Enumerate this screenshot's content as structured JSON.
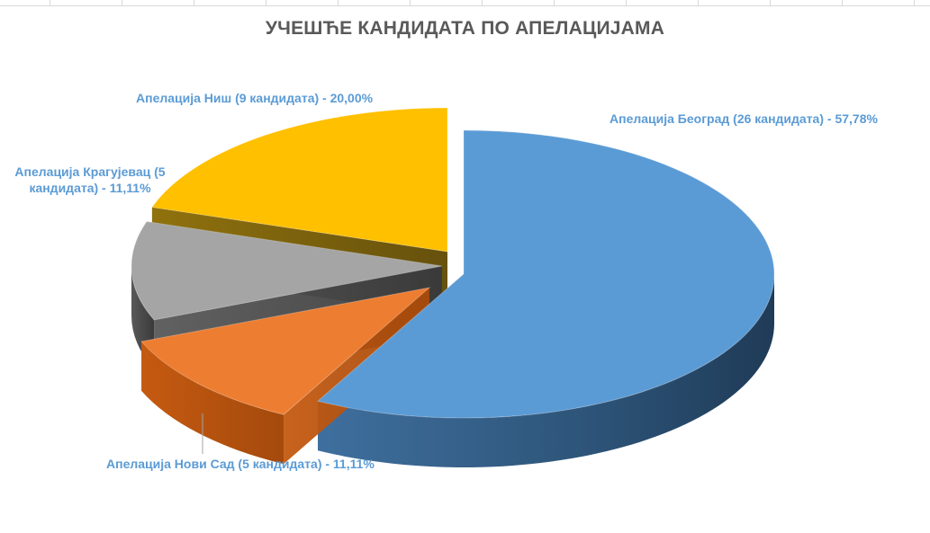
{
  "chart_data": {
    "type": "pie",
    "title": "УЧЕШЋЕ КАНДИДАТА ПО АПЕЛАЦИЈАМА",
    "slices": [
      {
        "label": "Апелација Београд (26 кандидата) - 57,78%",
        "value": 26,
        "percent": 57.78,
        "color": "#5b9bd5"
      },
      {
        "label": "Апелација Нови Сад  (5 кандидата) - 11,11%",
        "value": 5,
        "percent": 11.11,
        "color": "#ed7d31"
      },
      {
        "label": "Апелација Крагујевац (5 кандидата) - 11,11%",
        "value": 5,
        "percent": 11.11,
        "color": "#a5a5a5"
      },
      {
        "label": "Апелација Ниш (9 кандидата) - 20,00%",
        "value": 9,
        "percent": 20.0,
        "color": "#ffc000"
      }
    ],
    "style": "3d-exploded",
    "legend": "none"
  }
}
